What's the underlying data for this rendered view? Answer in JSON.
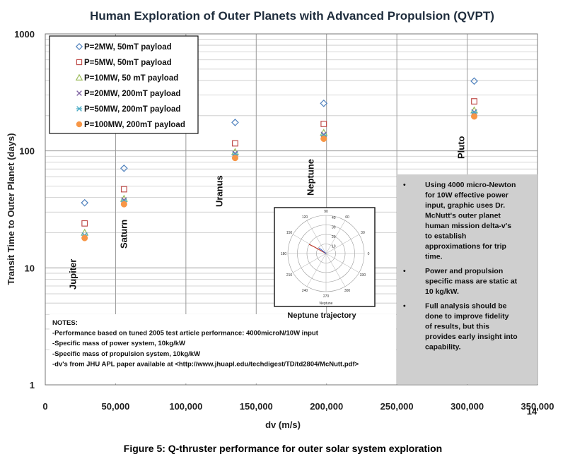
{
  "chart_data": {
    "type": "scatter",
    "title": "Human Exploration of Outer Planets with Advanced Propulsion (QVPT)",
    "xlabel": "dv (m/s)",
    "ylabel": "Transit Time to Outer Planet (days)",
    "xlim": [
      0,
      350000
    ],
    "ylim": [
      1,
      1000
    ],
    "yscale": "log",
    "grid": true,
    "legend_position": "top-left",
    "x_ticks": [
      0,
      50000,
      100000,
      150000,
      200000,
      250000,
      300000,
      350000
    ],
    "x_tick_labels": [
      "0",
      "50,000",
      "100,000",
      "150,000",
      "200,000",
      "250,000",
      "300,000",
      "350,000"
    ],
    "y_ticks": [
      1,
      10,
      100,
      1000
    ],
    "y_tick_labels": [
      "1",
      "10",
      "100",
      "1000"
    ],
    "categories": [
      "Jupiter",
      "Saturn",
      "Uranus",
      "Neptune",
      "Pluto"
    ],
    "x": [
      28000,
      56000,
      135000,
      198000,
      305000
    ],
    "series": [
      {
        "name": "P=2MW, 50mT payload",
        "marker": "diamond",
        "color": "#4f81bd",
        "values": [
          36,
          71,
          175,
          255,
          395
        ]
      },
      {
        "name": "P=5MW, 50mT payload",
        "marker": "square",
        "color": "#c0504d",
        "values": [
          24,
          47,
          116,
          170,
          265
        ]
      },
      {
        "name": "P=10MW, 50 mT payload",
        "marker": "triangle",
        "color": "#9bbb59",
        "values": [
          20,
          39,
          98,
          143,
          222
        ]
      },
      {
        "name": "P=20MW, 200mT payload",
        "marker": "x",
        "color": "#8064a2",
        "values": [
          19,
          38,
          95,
          138,
          215
        ]
      },
      {
        "name": "P=50MW, 200mT payload",
        "marker": "star",
        "color": "#4bacc6",
        "values": [
          19,
          37,
          93,
          135,
          212
        ]
      },
      {
        "name": "P=100MW, 200mT payload",
        "marker": "circle",
        "color": "#f79646",
        "values": [
          18,
          35,
          87,
          127,
          197
        ]
      }
    ],
    "planet_labels": [
      "Jupiter",
      "Saturn",
      "Uranus",
      "Neptune",
      "Pluto"
    ],
    "notes": [
      "NOTES:",
      "-Performance based on tuned 2005 test article performance: 4000microN/10W input",
      "-Specific mass of power system, 10kg/kW",
      "-Specific mass of propulsion system, 10kg/kW",
      "-dv's from JHU APL paper available at <http://www.jhuapl.edu/techdigest/TD/td2804/McNutt.pdf>"
    ],
    "callout": [
      [
        "Using 4000 micro-Newton",
        "for 10W effective power",
        "input, graphic uses Dr.",
        "McNutt's outer planet",
        "human mission delta-v's",
        "to establish",
        "approximations for trip",
        "time."
      ],
      [
        "Power and propulsion",
        "specific mass are static at",
        "10 kg/kW."
      ],
      [
        "Full analysis should be",
        "done to improve fidelity",
        "of results, but this",
        "provides early insight into",
        "capability."
      ]
    ],
    "inset": {
      "caption": "Neptune trajectory",
      "angles": [
        "90",
        "60",
        "30",
        "0",
        "330",
        "300",
        "270",
        "240",
        "210",
        "180",
        "150",
        "120"
      ],
      "radii": [
        "40",
        "30",
        "20",
        "10"
      ],
      "bottom_label": "Neptune"
    },
    "page_number": "14",
    "figure_caption": "Figure 5: Q-thruster performance for outer solar system exploration"
  }
}
